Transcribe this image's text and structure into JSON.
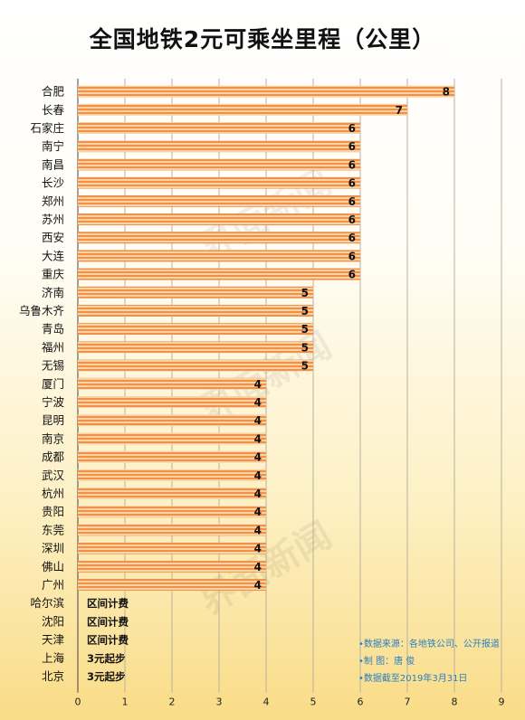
{
  "watermark": "界面新闻",
  "chart_data": {
    "type": "bar",
    "orientation": "horizontal",
    "title": "全国地铁2元可乘坐里程（公里）",
    "categories": [
      "合肥",
      "长春",
      "石家庄",
      "南宁",
      "南昌",
      "长沙",
      "郑州",
      "苏州",
      "西安",
      "大连",
      "重庆",
      "济南",
      "乌鲁木齐",
      "青岛",
      "福州",
      "无锡",
      "厦门",
      "宁波",
      "昆明",
      "南京",
      "成都",
      "武汉",
      "杭州",
      "贵阳",
      "东莞",
      "深圳",
      "佛山",
      "广州",
      "哈尔滨",
      "沈阳",
      "天津",
      "上海",
      "北京"
    ],
    "values": [
      8,
      7,
      6,
      6,
      6,
      6,
      6,
      6,
      6,
      6,
      6,
      5,
      5,
      5,
      5,
      5,
      4,
      4,
      4,
      4,
      4,
      4,
      4,
      4,
      4,
      4,
      4,
      4,
      null,
      null,
      null,
      null,
      null
    ],
    "notes": {
      "哈尔滨": "区间计费",
      "沈阳": "区间计费",
      "天津": "区间计费",
      "上海": "3元起步",
      "北京": "3元起步"
    },
    "xlim": [
      0,
      9
    ],
    "xticks": [
      "0",
      "1",
      "2",
      "3",
      "4",
      "5",
      "6",
      "7",
      "8",
      "9"
    ],
    "grid": true,
    "bar_color": "#f0904a",
    "bar_stripe_color": "#f9d39f"
  },
  "source": {
    "line1": "•数据来源：各地铁公司、公开报道",
    "line2": "•制     图：唐  俊",
    "line3": "•数据截至2019年3月31日"
  }
}
